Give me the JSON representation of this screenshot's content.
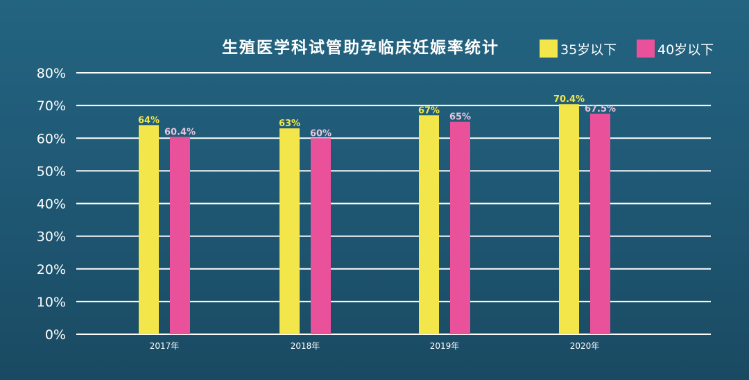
{
  "chart_data": {
    "type": "bar",
    "title": "生殖医学科试管助孕临床妊娠率统计",
    "categories": [
      "2017年",
      "2018年",
      "2019年",
      "2020年"
    ],
    "series": [
      {
        "name": "35岁以下",
        "color": "#f2e64a",
        "label_color": "#f2e64a",
        "values": [
          64,
          63,
          67,
          70.4
        ],
        "labels": [
          "64%",
          "63%",
          "67%",
          "70.4%"
        ]
      },
      {
        "name": "40岁以下",
        "color": "#e9519a",
        "label_color": "#e8c4dc",
        "values": [
          60.4,
          60,
          65,
          67.5
        ],
        "labels": [
          "60.4%",
          "60%",
          "65%",
          "67.5%"
        ]
      }
    ],
    "yticks": [
      "0%",
      "10%",
      "20%",
      "30%",
      "40%",
      "50%",
      "60%",
      "70%",
      "80%"
    ],
    "ylim": [
      0,
      80
    ],
    "grid": true,
    "legend": "top-right",
    "xlabel": "",
    "ylabel": ""
  }
}
